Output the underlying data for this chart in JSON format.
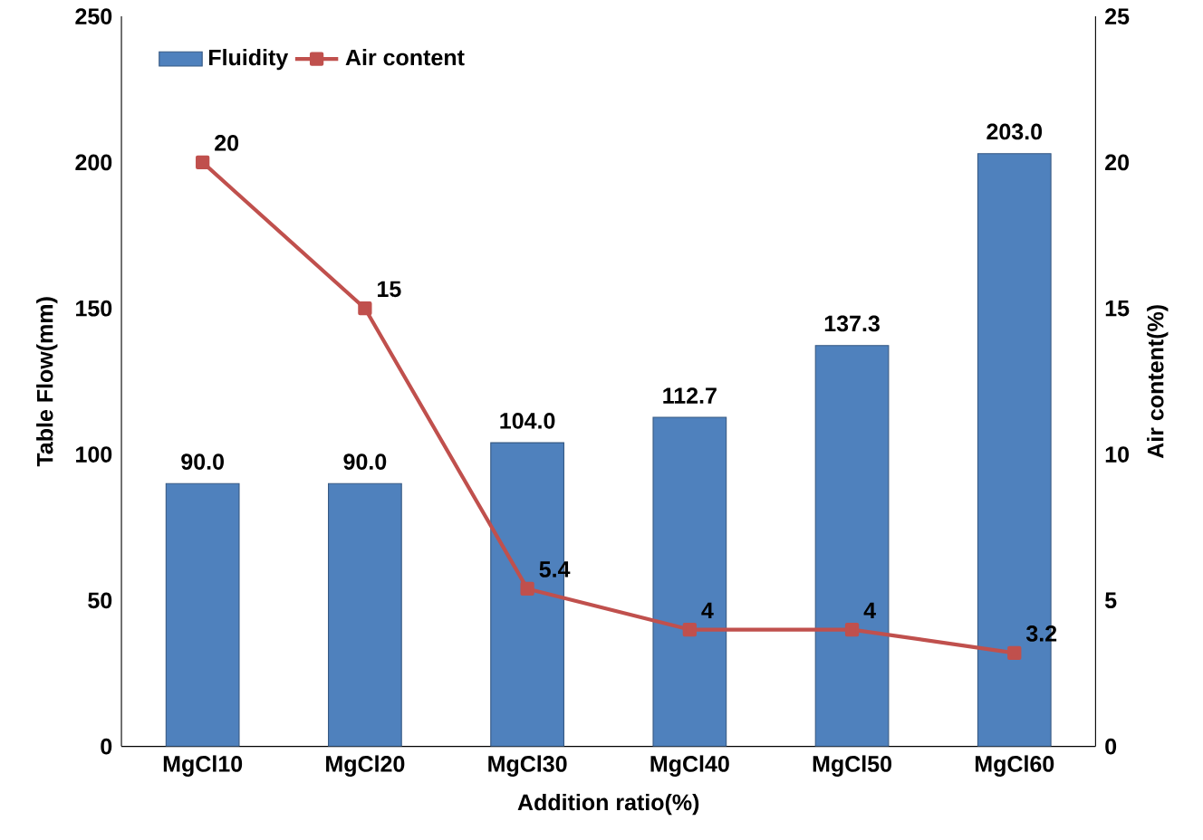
{
  "chart_data": {
    "type": "bar",
    "xlabel": "Addition ratio(%)",
    "ylabel": "Table Flow(mm)",
    "y2label": "Air content(%)",
    "categories": [
      "MgCl10",
      "MgCl20",
      "MgCl30",
      "MgCl40",
      "MgCl50",
      "MgCl60"
    ],
    "series": [
      {
        "name": "Fluidity",
        "color": "#4f81bd",
        "values": [
          90.0,
          90.0,
          104.0,
          112.7,
          137.3,
          203.0
        ],
        "value_labels": [
          "90.0",
          "90.0",
          "104.0",
          "112.7",
          "137.3",
          "203.0"
        ]
      },
      {
        "name": "Air content",
        "type": "line",
        "axis": "y2",
        "color": "#c0504d",
        "values": [
          20,
          15,
          5.4,
          4,
          4,
          3.2
        ],
        "value_labels": [
          "20",
          "15",
          "5.4",
          "4",
          "4",
          "3.2"
        ]
      }
    ],
    "ylim": [
      0,
      250
    ],
    "yticks": [
      0,
      50,
      100,
      150,
      200,
      250
    ],
    "y2lim": [
      0,
      25
    ],
    "y2ticks": [
      0,
      5,
      10,
      15,
      20,
      25
    ],
    "marker": "square",
    "line_style": "solid",
    "legend": "top left",
    "grid": false
  }
}
